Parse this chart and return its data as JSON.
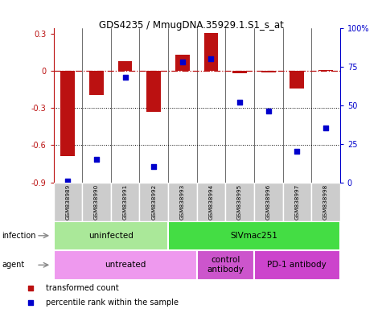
{
  "title": "GDS4235 / MmugDNA.35929.1.S1_s_at",
  "samples": [
    "GSM838989",
    "GSM838990",
    "GSM838991",
    "GSM838992",
    "GSM838993",
    "GSM838994",
    "GSM838995",
    "GSM838996",
    "GSM838997",
    "GSM838998"
  ],
  "bar_values": [
    -0.69,
    -0.19,
    0.08,
    -0.33,
    0.13,
    0.31,
    -0.02,
    -0.01,
    -0.14,
    0.01
  ],
  "percentile_values": [
    1,
    15,
    68,
    10,
    78,
    80,
    52,
    46,
    20,
    35
  ],
  "ylim_left": [
    -0.9,
    0.35
  ],
  "ylim_right": [
    0,
    100
  ],
  "bar_color": "#bb1111",
  "dot_color": "#0000cc",
  "dotted_lines": [
    -0.3,
    -0.6
  ],
  "left_ticks": [
    -0.9,
    -0.6,
    -0.3,
    0,
    0.3
  ],
  "right_ticks": [
    0,
    25,
    50,
    75,
    100
  ],
  "right_tick_labels": [
    "0",
    "25",
    "50",
    "75",
    "100%"
  ],
  "infection_groups": [
    {
      "label": "uninfected",
      "start": 0,
      "end": 4,
      "color": "#aae899"
    },
    {
      "label": "SIVmac251",
      "start": 4,
      "end": 10,
      "color": "#44dd44"
    }
  ],
  "agent_groups": [
    {
      "label": "untreated",
      "start": 0,
      "end": 5,
      "color": "#ee99ee"
    },
    {
      "label": "control\nantibody",
      "start": 5,
      "end": 7,
      "color": "#cc55cc"
    },
    {
      "label": "PD-1 antibody",
      "start": 7,
      "end": 10,
      "color": "#cc44cc"
    }
  ],
  "sample_bg_color": "#cccccc",
  "legend_items": [
    {
      "label": "transformed count",
      "color": "#bb1111"
    },
    {
      "label": "percentile rank within the sample",
      "color": "#0000cc"
    }
  ]
}
